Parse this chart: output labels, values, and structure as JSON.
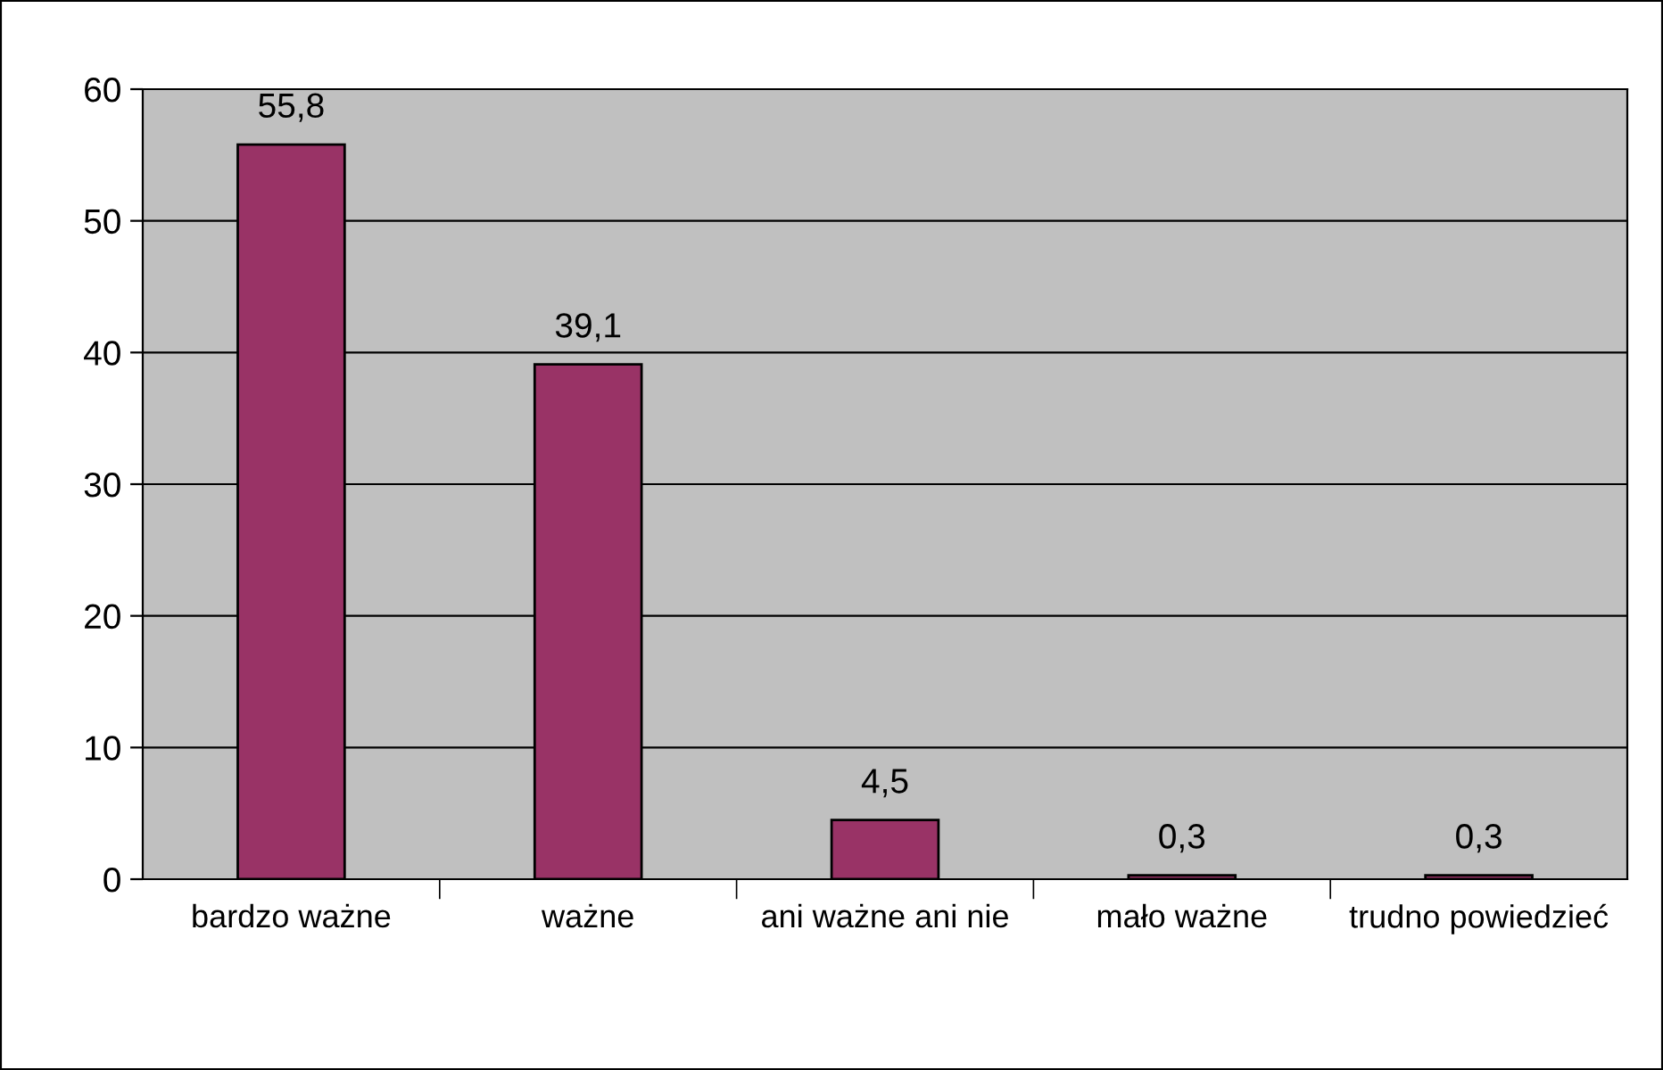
{
  "chart_data": {
    "type": "bar",
    "categories": [
      "bardzo ważne",
      "ważne",
      "ani ważne ani nie",
      "mało ważne",
      "trudno powiedzieć"
    ],
    "values": [
      55.8,
      39.1,
      4.5,
      0.3,
      0.3
    ],
    "value_labels": [
      "55,8",
      "39,1",
      "4,5",
      "0,3",
      "0,3"
    ],
    "color": "#993366",
    "ylim": [
      0,
      60
    ],
    "yticks": [
      0,
      10,
      20,
      30,
      40,
      50,
      60
    ],
    "grid": "y",
    "legend": false
  }
}
